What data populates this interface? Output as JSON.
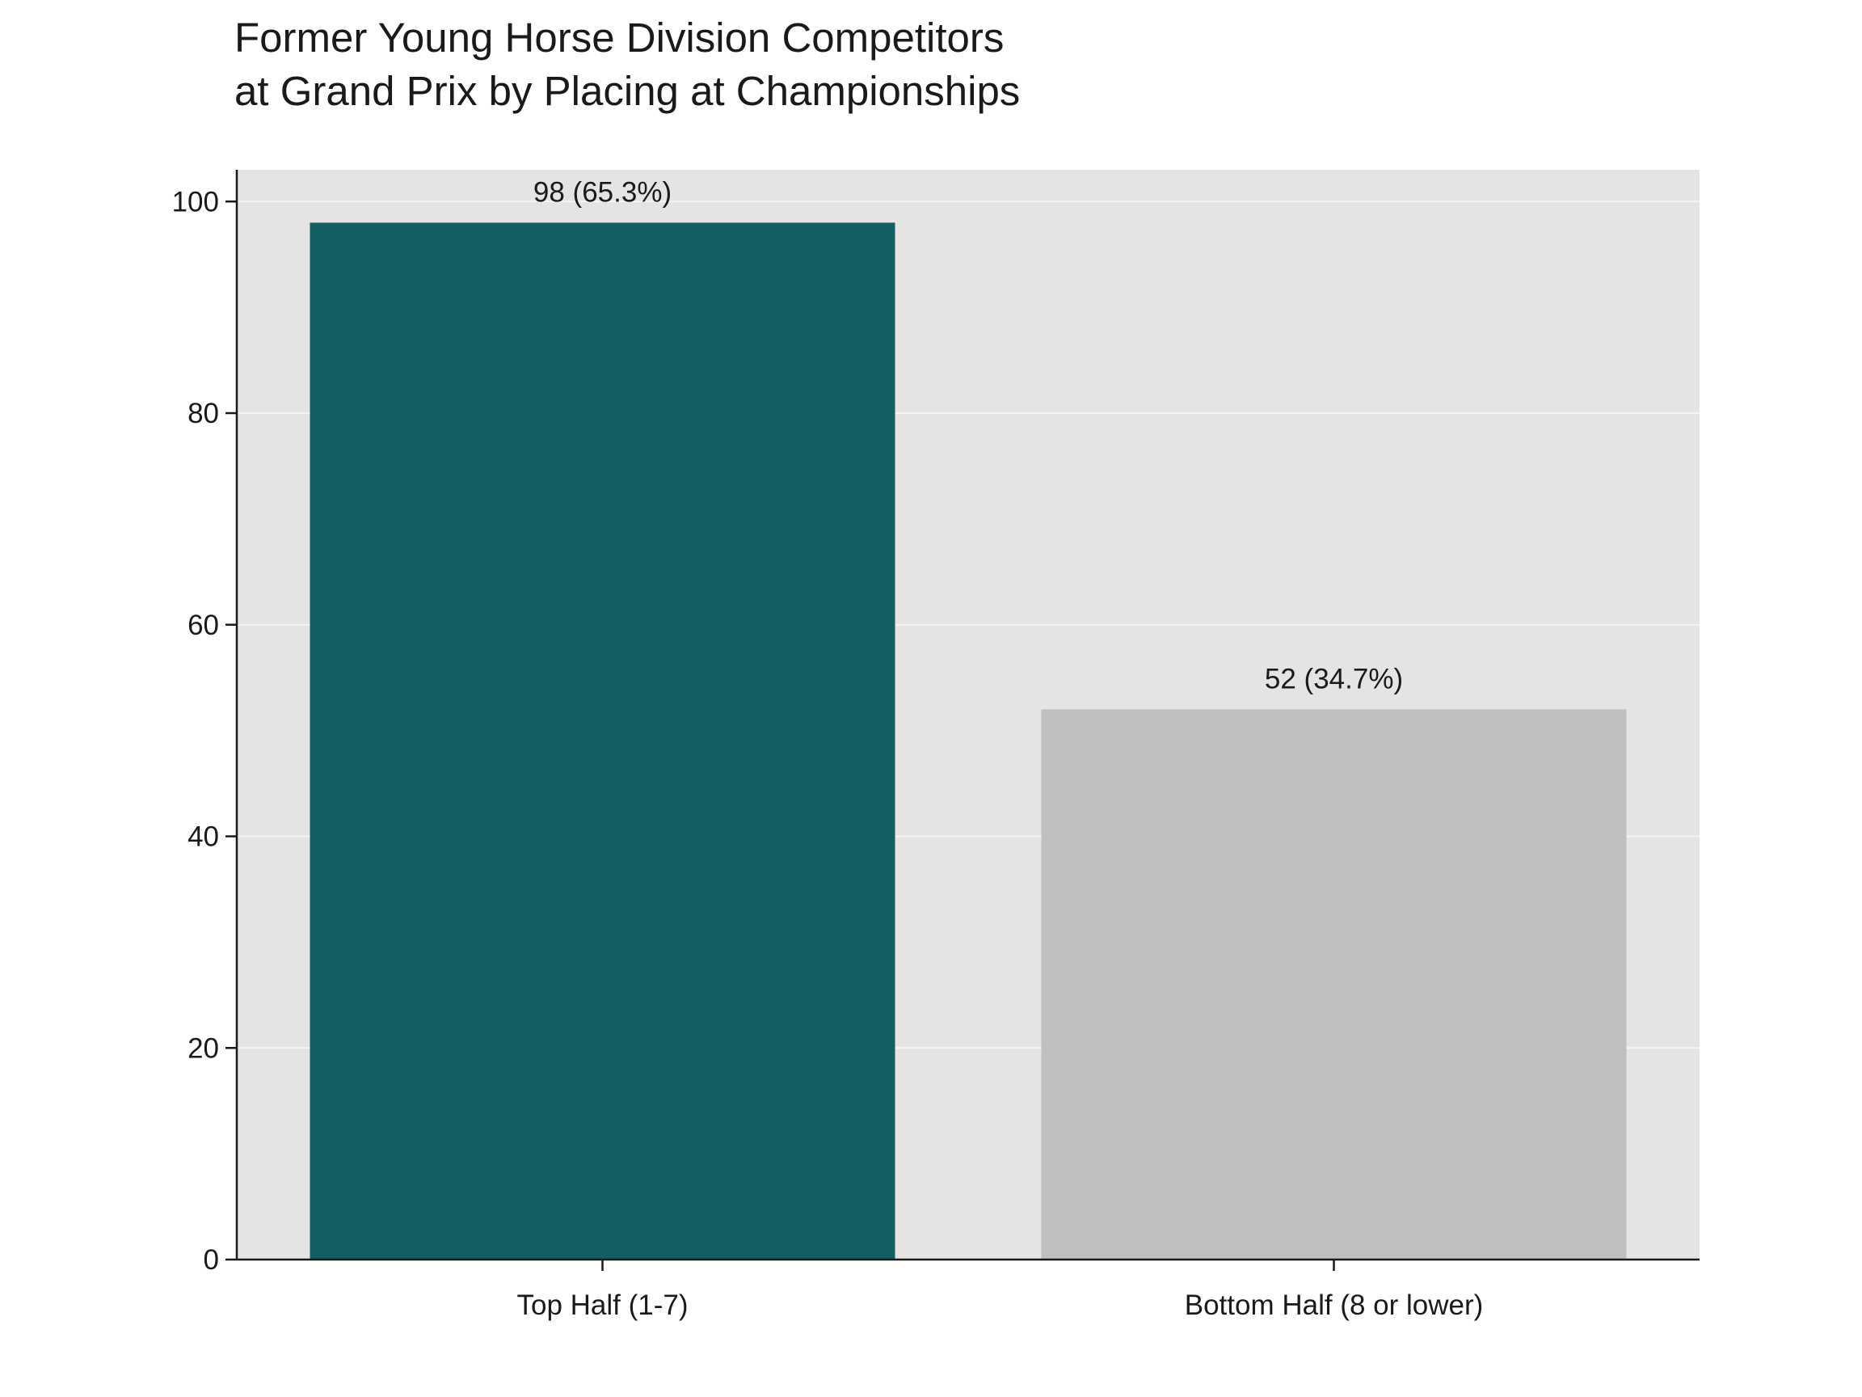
{
  "chart_data": {
    "type": "bar",
    "title_line1": "Former Young Horse Division Competitors",
    "title_line2": "at Grand Prix by Placing at Championships",
    "categories": [
      "Top Half (1-7)",
      "Bottom Half (8 or lower)"
    ],
    "values": [
      98,
      52
    ],
    "data_labels": [
      "98 (65.3%)",
      "52 (34.7%)"
    ],
    "bar_colors": [
      "#135e63",
      "#bfbfbf"
    ],
    "plot_background": "#e5e4e2",
    "gridline_color": "#f5f5f5",
    "ylim": [
      0,
      103
    ],
    "yticks": [
      0,
      20,
      40,
      60,
      80,
      100
    ],
    "grid": true,
    "xlabel": "",
    "ylabel": ""
  }
}
